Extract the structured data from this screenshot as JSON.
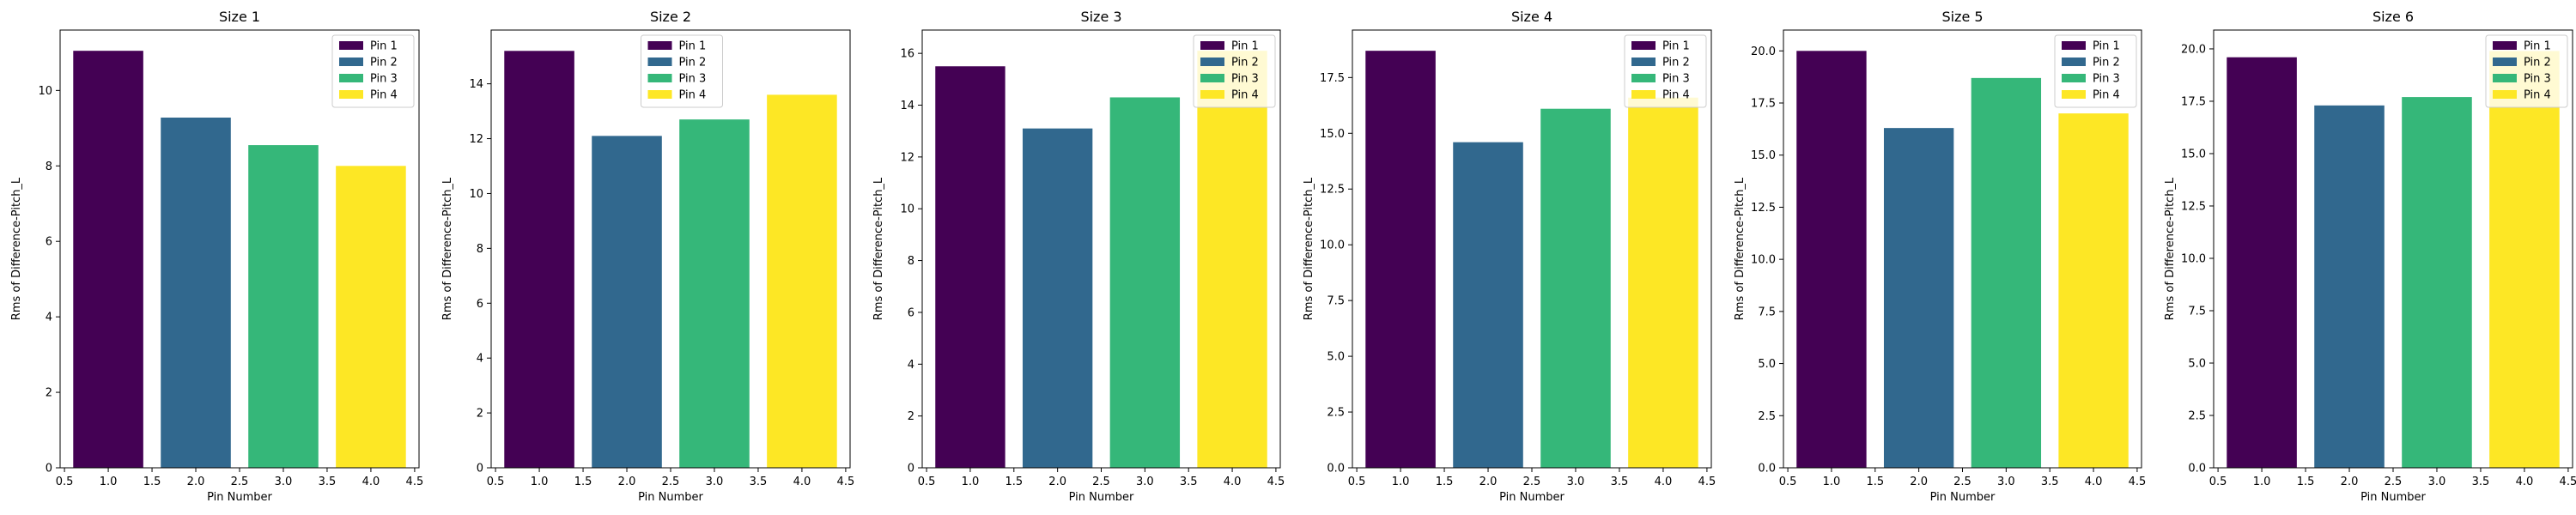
{
  "chart_data": [
    {
      "type": "bar",
      "title": "Size 1",
      "xlabel": "Pin Number",
      "ylabel": "Rms of Difference-Pitch_L",
      "x": [
        1,
        2,
        3,
        4
      ],
      "values": [
        11.05,
        9.28,
        8.55,
        8.0
      ],
      "series_names": [
        "Pin 1",
        "Pin 2",
        "Pin 3",
        "Pin 4"
      ],
      "xlim": [
        0.45,
        4.55
      ],
      "ylim": [
        0,
        11.6
      ],
      "xticks": [
        "0.5",
        "1.0",
        "1.5",
        "2.0",
        "2.5",
        "3.0",
        "3.5",
        "4.0",
        "4.5"
      ],
      "yticks": [
        "0",
        "2",
        "4",
        "6",
        "8",
        "10"
      ],
      "grid": false,
      "legend_position": "top-right"
    },
    {
      "type": "bar",
      "title": "Size 2",
      "xlabel": "Pin Number",
      "ylabel": "Rms of Difference-Pitch_L",
      "x": [
        1,
        2,
        3,
        4
      ],
      "values": [
        15.2,
        12.1,
        12.7,
        13.6
      ],
      "series_names": [
        "Pin 1",
        "Pin 2",
        "Pin 3",
        "Pin 4"
      ],
      "xlim": [
        0.45,
        4.55
      ],
      "ylim": [
        0,
        15.96
      ],
      "xticks": [
        "0.5",
        "1.0",
        "1.5",
        "2.0",
        "2.5",
        "3.0",
        "3.5",
        "4.0",
        "4.5"
      ],
      "yticks": [
        "0",
        "2",
        "4",
        "6",
        "8",
        "10",
        "12",
        "14"
      ],
      "grid": false,
      "legend_position": "top-center"
    },
    {
      "type": "bar",
      "title": "Size 3",
      "xlabel": "Pin Number",
      "ylabel": "Rms of Difference-Pitch_L",
      "x": [
        1,
        2,
        3,
        4
      ],
      "values": [
        15.5,
        13.1,
        14.3,
        16.1
      ],
      "series_names": [
        "Pin 1",
        "Pin 2",
        "Pin 3",
        "Pin 4"
      ],
      "xlim": [
        0.45,
        4.55
      ],
      "ylim": [
        0,
        16.9
      ],
      "xticks": [
        "0.5",
        "1.0",
        "1.5",
        "2.0",
        "2.5",
        "3.0",
        "3.5",
        "4.0",
        "4.5"
      ],
      "yticks": [
        "0",
        "2",
        "4",
        "6",
        "8",
        "10",
        "12",
        "14",
        "16"
      ],
      "grid": false,
      "legend_position": "top-right"
    },
    {
      "type": "bar",
      "title": "Size 4",
      "xlabel": "Pin Number",
      "ylabel": "Rms of Difference-Pitch_L",
      "x": [
        1,
        2,
        3,
        4
      ],
      "values": [
        18.7,
        14.6,
        16.1,
        16.6
      ],
      "series_names": [
        "Pin 1",
        "Pin 2",
        "Pin 3",
        "Pin 4"
      ],
      "xlim": [
        0.45,
        4.55
      ],
      "ylim": [
        0,
        19.63
      ],
      "xticks": [
        "0.5",
        "1.0",
        "1.5",
        "2.0",
        "2.5",
        "3.0",
        "3.5",
        "4.0",
        "4.5"
      ],
      "yticks": [
        "0.0",
        "2.5",
        "5.0",
        "7.5",
        "10.0",
        "12.5",
        "15.0",
        "17.5"
      ],
      "grid": false,
      "legend_position": "top-right"
    },
    {
      "type": "bar",
      "title": "Size 5",
      "xlabel": "Pin Number",
      "ylabel": "Rms of Difference-Pitch_L",
      "x": [
        1,
        2,
        3,
        4
      ],
      "values": [
        20.0,
        16.3,
        18.7,
        17.0
      ],
      "series_names": [
        "Pin 1",
        "Pin 2",
        "Pin 3",
        "Pin 4"
      ],
      "xlim": [
        0.45,
        4.55
      ],
      "ylim": [
        0,
        21.0
      ],
      "xticks": [
        "0.5",
        "1.0",
        "1.5",
        "2.0",
        "2.5",
        "3.0",
        "3.5",
        "4.0",
        "4.5"
      ],
      "yticks": [
        "0.0",
        "2.5",
        "5.0",
        "7.5",
        "10.0",
        "12.5",
        "15.0",
        "17.5",
        "20.0"
      ],
      "grid": false,
      "legend_position": "top-right"
    },
    {
      "type": "bar",
      "title": "Size 6",
      "xlabel": "Pin Number",
      "ylabel": "Rms of Difference-Pitch_L",
      "x": [
        1,
        2,
        3,
        4
      ],
      "values": [
        19.6,
        17.3,
        17.7,
        19.9
      ],
      "series_names": [
        "Pin 1",
        "Pin 2",
        "Pin 3",
        "Pin 4"
      ],
      "xlim": [
        0.45,
        4.55
      ],
      "ylim": [
        0,
        20.9
      ],
      "xticks": [
        "0.5",
        "1.0",
        "1.5",
        "2.0",
        "2.5",
        "3.0",
        "3.5",
        "4.0",
        "4.5"
      ],
      "yticks": [
        "0.0",
        "2.5",
        "5.0",
        "7.5",
        "10.0",
        "12.5",
        "15.0",
        "17.5",
        "20.0"
      ],
      "grid": false,
      "legend_position": "top-right"
    }
  ],
  "colors": [
    "#440154",
    "#31688e",
    "#35b779",
    "#fde725"
  ]
}
